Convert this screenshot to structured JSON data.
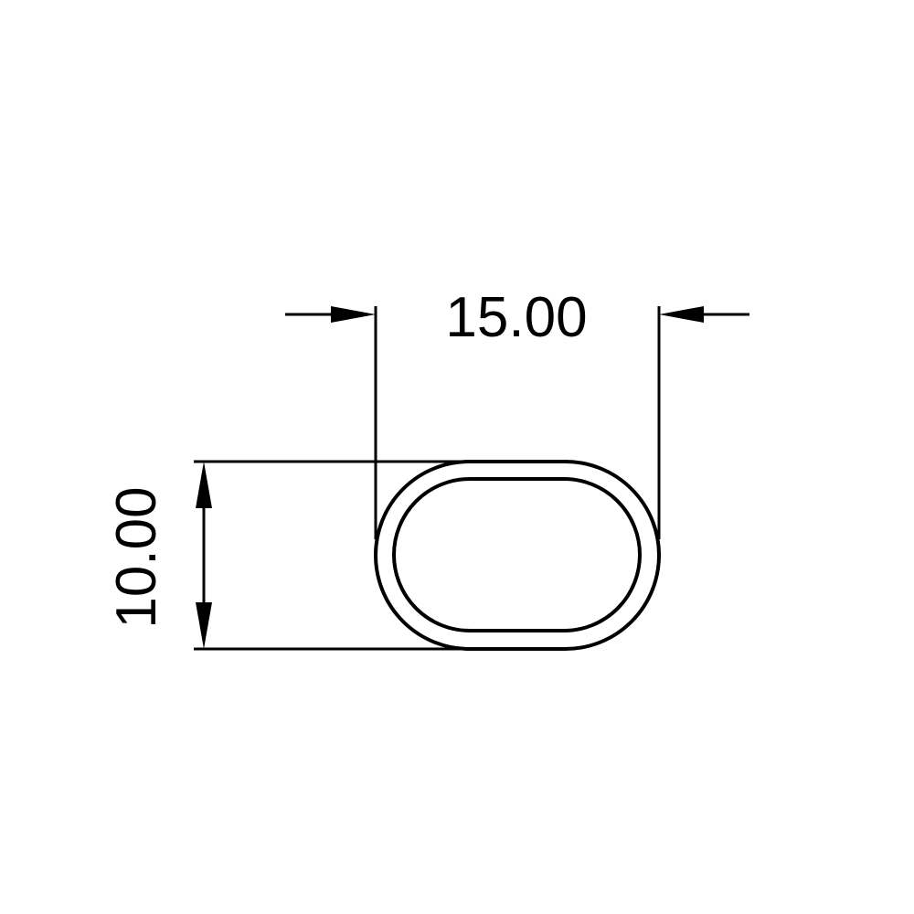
{
  "drawing": {
    "width_dimension": {
      "label": "15.00",
      "value": 15.0
    },
    "height_dimension": {
      "label": "10.00",
      "value": 10.0
    },
    "profile_shape": "oval-tube",
    "line_color": "#000000",
    "background_color": "#ffffff"
  }
}
